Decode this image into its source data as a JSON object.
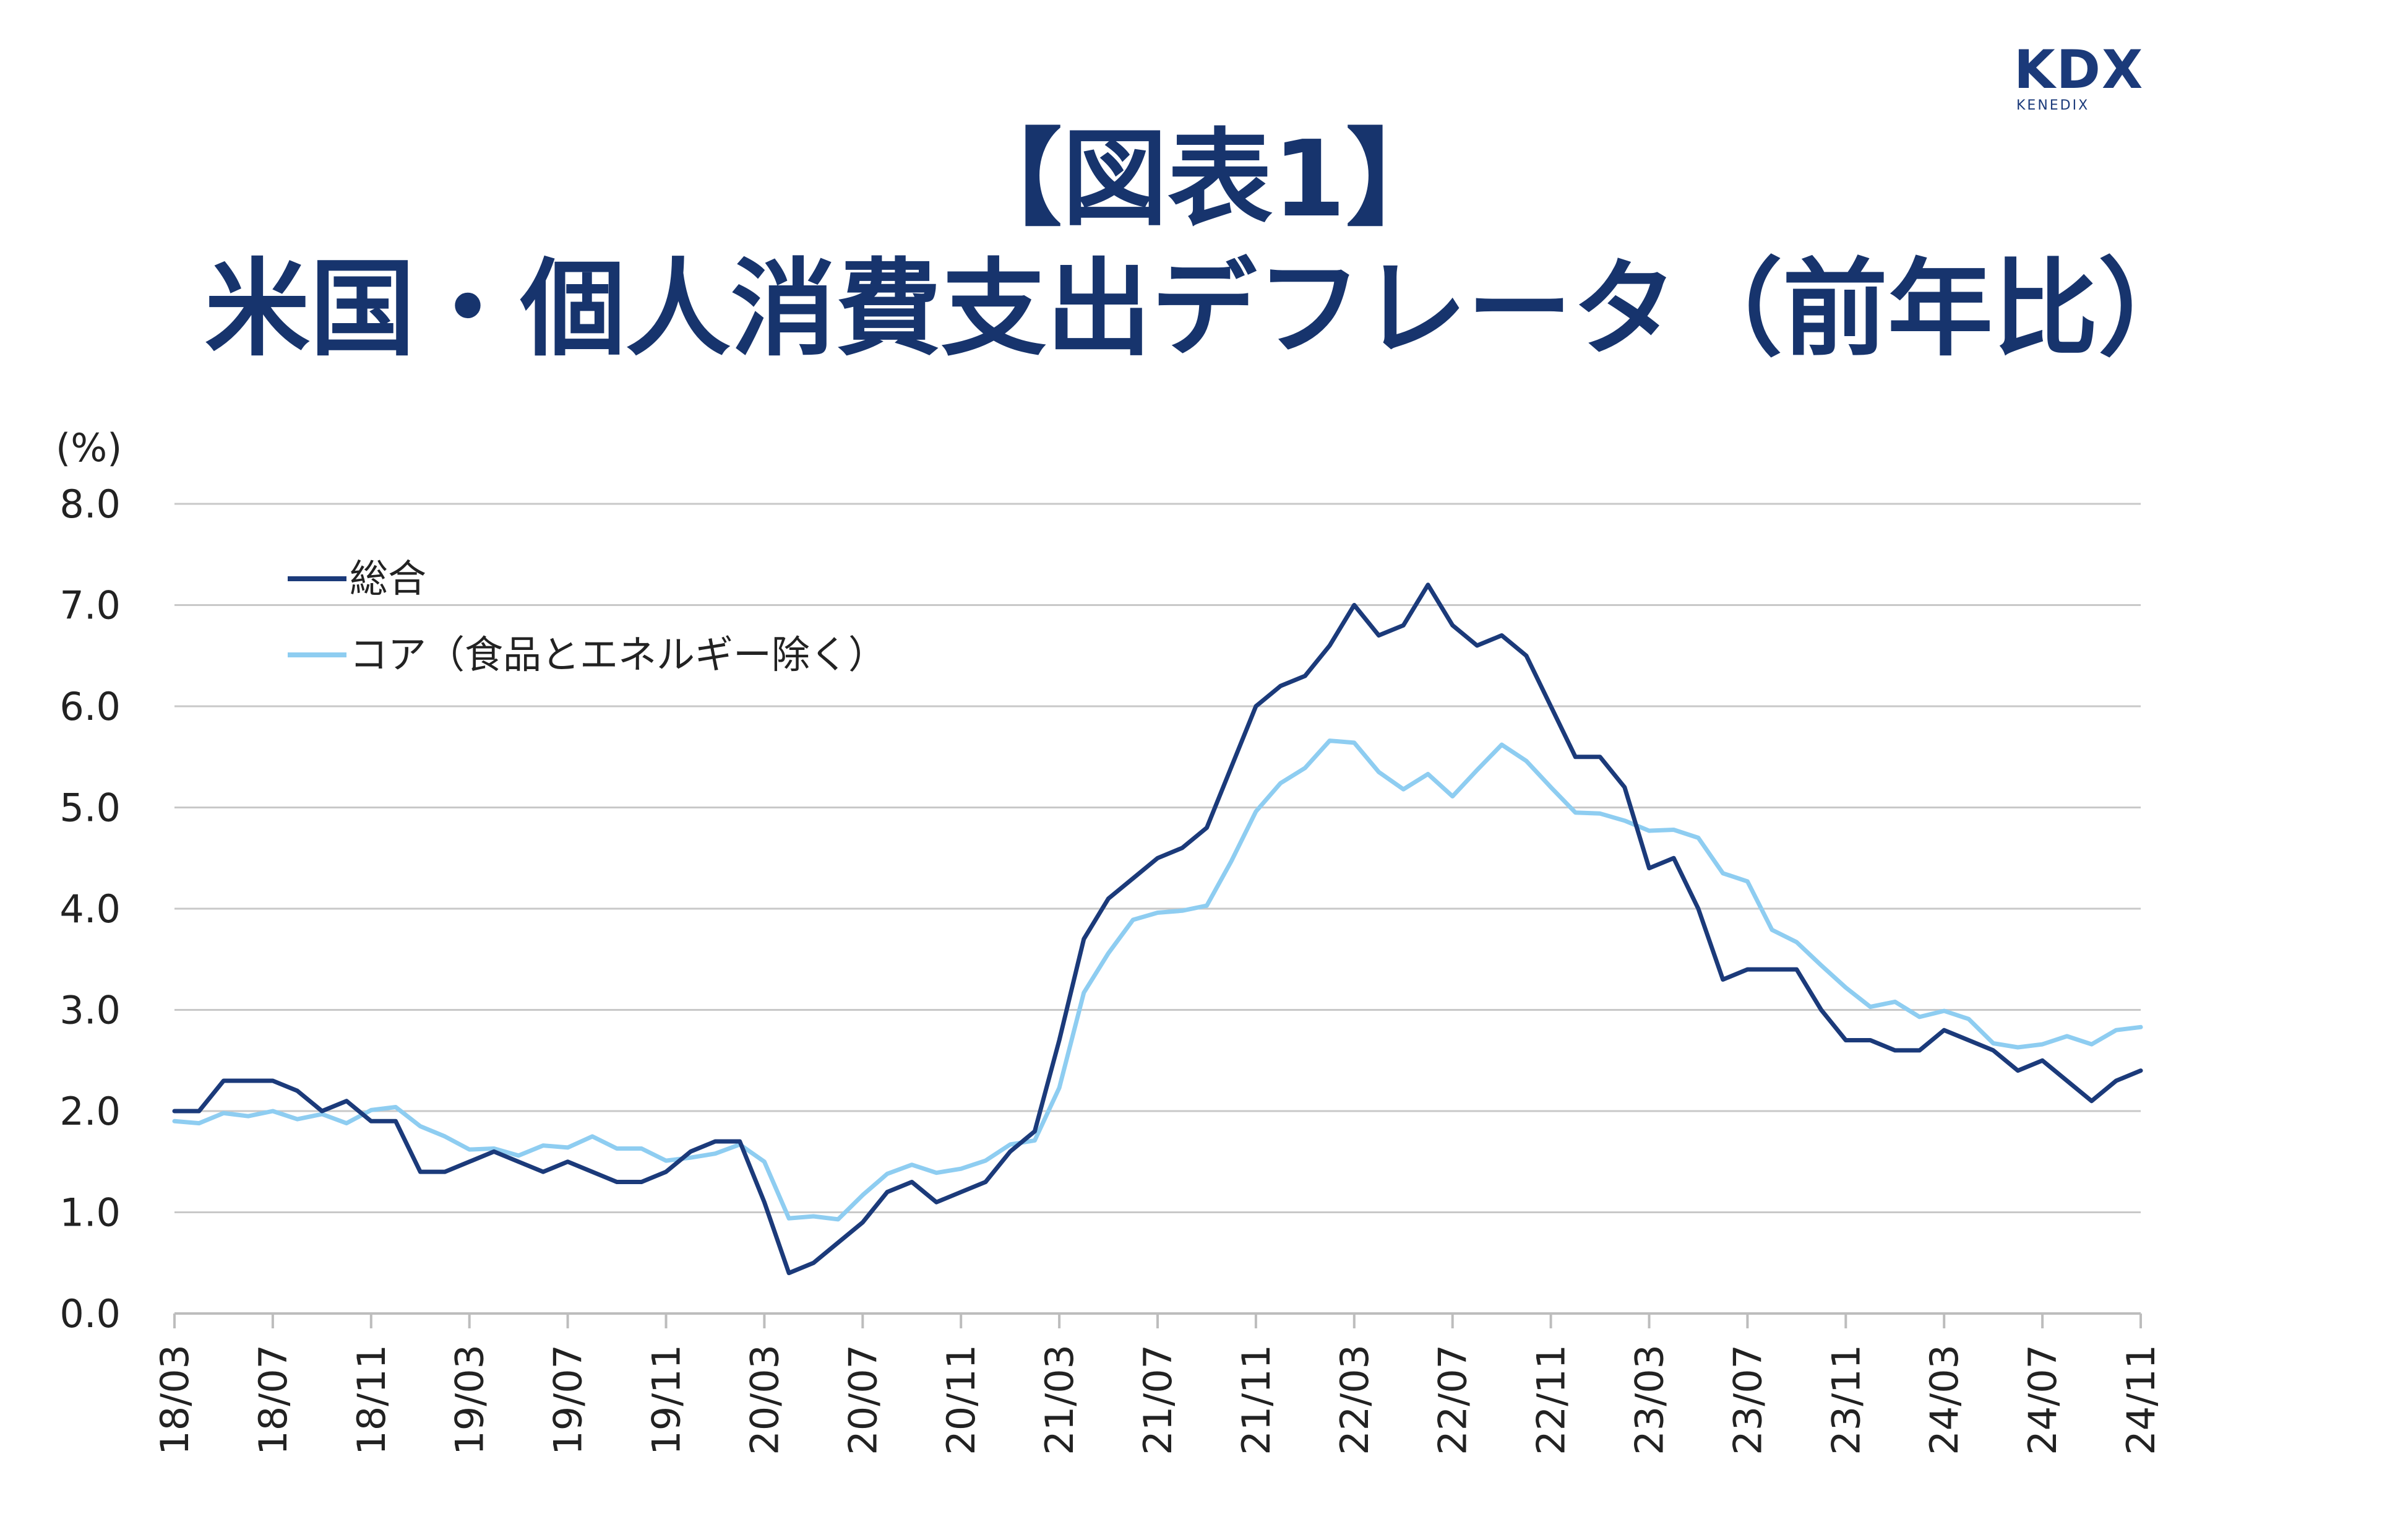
{
  "logo": {
    "mark": "KDX",
    "sub": "KENEDIX"
  },
  "title_line1": "【図表1】",
  "title_line2": "米国・個人消費支出デフレータ（前年比）",
  "chart_data": {
    "type": "line",
    "ylabel": "(%)",
    "ylim": [
      0,
      8
    ],
    "yticks": [
      "0.0",
      "1.0",
      "2.0",
      "3.0",
      "4.0",
      "5.0",
      "6.0",
      "7.0",
      "8.0"
    ],
    "grid": true,
    "legend_position": "top-left",
    "x": [
      "18/03",
      "18/04",
      "18/05",
      "18/06",
      "18/07",
      "18/08",
      "18/09",
      "18/10",
      "18/11",
      "18/12",
      "19/01",
      "19/02",
      "19/03",
      "19/04",
      "19/05",
      "19/06",
      "19/07",
      "19/08",
      "19/09",
      "19/10",
      "19/11",
      "19/12",
      "20/01",
      "20/02",
      "20/03",
      "20/04",
      "20/05",
      "20/06",
      "20/07",
      "20/08",
      "20/09",
      "20/10",
      "20/11",
      "20/12",
      "21/01",
      "21/02",
      "21/03",
      "21/04",
      "21/05",
      "21/06",
      "21/07",
      "21/08",
      "21/09",
      "21/10",
      "21/11",
      "21/12",
      "22/01",
      "22/02",
      "22/03",
      "22/04",
      "22/05",
      "22/06",
      "22/07",
      "22/08",
      "22/09",
      "22/10",
      "22/11",
      "22/12",
      "23/01",
      "23/02",
      "23/03",
      "23/04",
      "23/05",
      "23/06",
      "23/07",
      "23/08",
      "23/09",
      "23/10",
      "23/11",
      "23/12",
      "24/01",
      "24/02",
      "24/03",
      "24/04",
      "24/05",
      "24/06",
      "24/07",
      "24/08",
      "24/09",
      "24/10",
      "24/11"
    ],
    "xtick_labels": [
      "18/03",
      "18/07",
      "18/11",
      "19/03",
      "19/07",
      "19/11",
      "20/03",
      "20/07",
      "20/11",
      "21/03",
      "21/07",
      "21/11",
      "22/03",
      "22/07",
      "22/11",
      "23/03",
      "23/07",
      "23/11",
      "24/03",
      "24/07",
      "24/11"
    ],
    "series": [
      {
        "name": "総合",
        "color": "#1b3a7a",
        "values": [
          2.0,
          2.0,
          2.3,
          2.3,
          2.3,
          2.2,
          2.0,
          2.1,
          1.9,
          1.9,
          1.4,
          1.4,
          1.5,
          1.6,
          1.5,
          1.4,
          1.5,
          1.4,
          1.3,
          1.3,
          1.4,
          1.6,
          1.7,
          1.7,
          1.1,
          0.4,
          0.5,
          0.7,
          0.9,
          1.2,
          1.3,
          1.1,
          1.2,
          1.3,
          1.6,
          1.8,
          2.7,
          3.7,
          4.1,
          4.3,
          4.5,
          4.6,
          4.8,
          5.4,
          6.0,
          6.2,
          6.3,
          6.6,
          7.0,
          6.7,
          6.8,
          7.2,
          6.8,
          6.6,
          6.7,
          6.5,
          6.0,
          5.5,
          5.5,
          5.2,
          4.4,
          4.5,
          4.0,
          3.3,
          3.4,
          3.4,
          3.4,
          3.0,
          2.7,
          2.7,
          2.6,
          2.6,
          2.8,
          2.7,
          2.6,
          2.4,
          2.5,
          2.3,
          2.1,
          2.3,
          2.4
        ]
      },
      {
        "name": "コア（食品とエネルギー除く）",
        "color": "#8ecdf1",
        "values": [
          1.9,
          1.88,
          1.98,
          1.95,
          2.0,
          1.92,
          1.97,
          1.88,
          2.01,
          2.04,
          1.85,
          1.75,
          1.62,
          1.63,
          1.56,
          1.66,
          1.64,
          1.75,
          1.63,
          1.63,
          1.51,
          1.54,
          1.58,
          1.67,
          1.5,
          0.94,
          0.96,
          0.93,
          1.17,
          1.38,
          1.47,
          1.39,
          1.43,
          1.51,
          1.67,
          1.71,
          2.23,
          3.17,
          3.56,
          3.89,
          3.96,
          3.98,
          4.03,
          4.47,
          4.96,
          5.24,
          5.39,
          5.66,
          5.64,
          5.35,
          5.18,
          5.33,
          5.11,
          5.37,
          5.62,
          5.46,
          5.2,
          4.95,
          4.94,
          4.87,
          4.77,
          4.78,
          4.7,
          4.35,
          4.27,
          3.79,
          3.67,
          3.44,
          3.22,
          3.03,
          3.08,
          2.93,
          2.99,
          2.91,
          2.67,
          2.63,
          2.66,
          2.74,
          2.66,
          2.8,
          2.83
        ]
      }
    ]
  }
}
